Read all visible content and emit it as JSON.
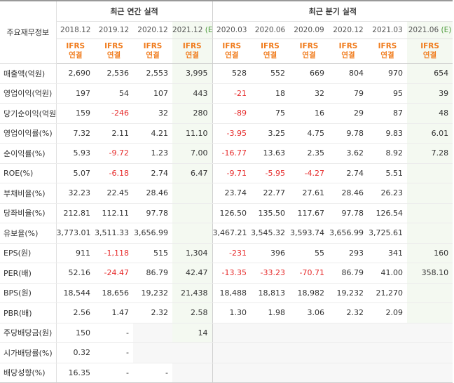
{
  "table": {
    "corner_label": "주요재무정보",
    "group_annual": "최근 연간 실적",
    "group_quarter": "최근 분기 실적",
    "estimate_mark": "(E)",
    "ifrs_label": "IFRS",
    "consolidated_label": "연결",
    "periods": [
      "2018.12",
      "2019.12",
      "2020.12",
      "2021.12",
      "2020.03",
      "2020.06",
      "2020.09",
      "2020.12",
      "2021.03",
      "2021.06"
    ],
    "rows": [
      {
        "label": "매출액(억원)",
        "values": [
          "2,690",
          "2,536",
          "2,553",
          "3,995",
          "528",
          "552",
          "669",
          "804",
          "970",
          "654"
        ]
      },
      {
        "label": "영업이익(억원)",
        "values": [
          "197",
          "54",
          "107",
          "443",
          "-21",
          "18",
          "32",
          "79",
          "95",
          "39"
        ]
      },
      {
        "label": "당기순이익(억원)",
        "values": [
          "159",
          "-246",
          "32",
          "280",
          "-89",
          "75",
          "16",
          "29",
          "87",
          "48"
        ]
      },
      {
        "label": "영업이익률(%)",
        "values": [
          "7.32",
          "2.11",
          "4.21",
          "11.10",
          "-3.95",
          "3.25",
          "4.75",
          "9.78",
          "9.83",
          "6.01"
        ]
      },
      {
        "label": "순이익률(%)",
        "values": [
          "5.93",
          "-9.72",
          "1.23",
          "7.00",
          "-16.77",
          "13.63",
          "2.35",
          "3.62",
          "8.92",
          "7.28"
        ]
      },
      {
        "label": "ROE(%)",
        "values": [
          "5.07",
          "-6.18",
          "2.74",
          "6.47",
          "-9.71",
          "-5.95",
          "-4.27",
          "2.74",
          "5.51",
          ""
        ]
      },
      {
        "label": "부채비율(%)",
        "values": [
          "32.23",
          "22.45",
          "28.46",
          "",
          "23.74",
          "22.77",
          "27.61",
          "28.46",
          "26.23",
          ""
        ]
      },
      {
        "label": "당좌비율(%)",
        "values": [
          "212.81",
          "112.11",
          "97.78",
          "",
          "126.50",
          "135.50",
          "117.67",
          "97.78",
          "126.54",
          ""
        ]
      },
      {
        "label": "유보율(%)",
        "values": [
          "3,773.01",
          "3,511.33",
          "3,656.99",
          "",
          "3,467.21",
          "3,545.32",
          "3,593.74",
          "3,656.99",
          "3,725.61",
          ""
        ]
      },
      {
        "label": "EPS(원)",
        "values": [
          "911",
          "-1,118",
          "515",
          "1,304",
          "-231",
          "396",
          "55",
          "293",
          "341",
          "160"
        ]
      },
      {
        "label": "PER(배)",
        "values": [
          "52.16",
          "-24.47",
          "86.79",
          "42.47",
          "-13.35",
          "-33.23",
          "-70.71",
          "86.79",
          "41.00",
          "358.10"
        ]
      },
      {
        "label": "BPS(원)",
        "values": [
          "18,544",
          "18,656",
          "19,232",
          "21,438",
          "18,488",
          "18,813",
          "18,982",
          "19,232",
          "21,270",
          ""
        ]
      },
      {
        "label": "PBR(배)",
        "values": [
          "2.56",
          "1.47",
          "2.32",
          "2.58",
          "1.30",
          "1.98",
          "3.06",
          "2.32",
          "2.09",
          ""
        ]
      },
      {
        "label": "주당배당금(원)",
        "values": [
          "150",
          "-",
          "",
          "14",
          "",
          "",
          "",
          "",
          "",
          ""
        ]
      },
      {
        "label": "시가배당률(%)",
        "values": [
          "0.32",
          "-",
          "",
          "",
          "",
          "",
          "",
          "",
          "",
          ""
        ]
      },
      {
        "label": "배당성향(%)",
        "values": [
          "16.35",
          "-",
          "-",
          "",
          "",
          "",
          "",
          "",
          "",
          ""
        ]
      }
    ],
    "colors": {
      "negative": "#e62b2b",
      "ifrs": "#f07a1a",
      "estimate": "#4a9a3a",
      "highlight": "#f4f9f1"
    }
  }
}
